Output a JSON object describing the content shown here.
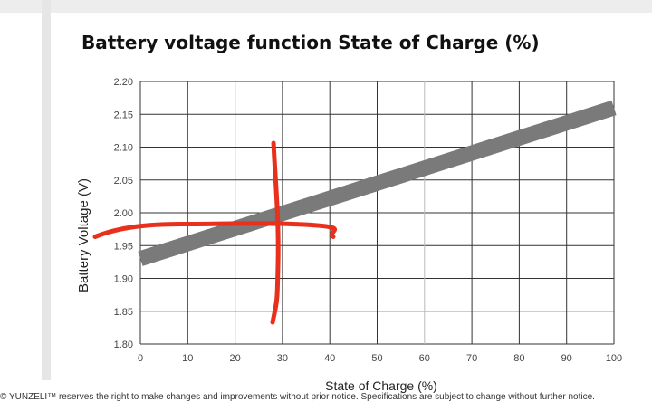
{
  "chart_data": {
    "type": "line",
    "title": "Battery voltage function State of Charge (%)",
    "xlabel": "State of Charge (%)",
    "ylabel": "Battery Voltage (V)",
    "xlim": [
      0,
      100
    ],
    "ylim": [
      1.8,
      2.2
    ],
    "xticks": [
      "0",
      "10",
      "20",
      "30",
      "40",
      "50",
      "60",
      "70",
      "80",
      "90",
      "100"
    ],
    "yticks": [
      "2.20",
      "2.15",
      "2.10",
      "2.05",
      "2.00",
      "1.95",
      "1.90",
      "1.85",
      "1.80"
    ],
    "grid": true,
    "series": [
      {
        "x": [
          0,
          100
        ],
        "y": [
          1.93,
          2.16
        ],
        "color": "#7a7a7a"
      }
    ],
    "annotations": {
      "color": "#e8301c",
      "horizontal_marker_y": 1.98,
      "vertical_marker_x": 28.5
    }
  },
  "footer": {
    "text": "© YUNZELI™ reserves the right to make changes and improvements without prior notice. Specifications are subject to change without further notice."
  }
}
